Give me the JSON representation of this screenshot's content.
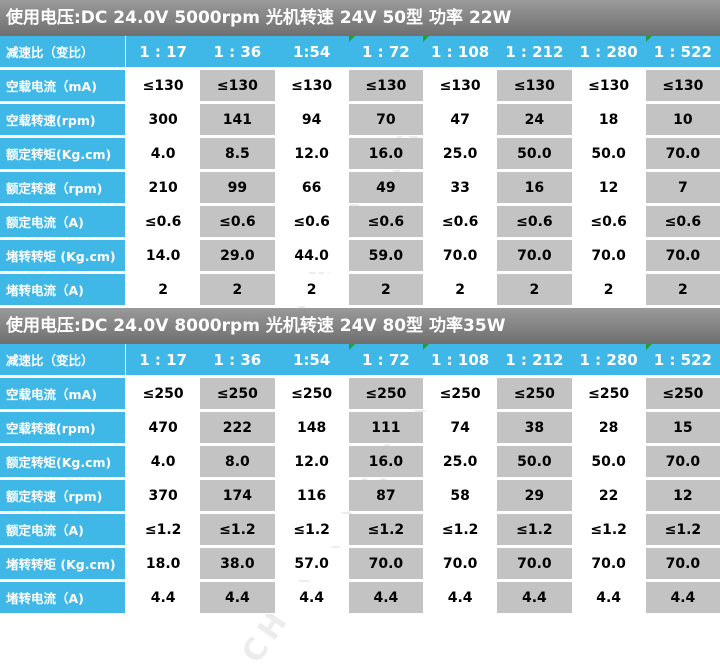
{
  "tables": [
    {
      "header": "使用电压:DC 24.0V 5000rpm 光机转速 24V 50型 功率 22W",
      "ratio_label": "减速比（变比）",
      "ratios": [
        "1 : 17",
        "1 : 36",
        "1:54",
        "1 : 72",
        "1 : 108",
        "1 : 212",
        "1 : 280",
        "1 : 522"
      ],
      "rows": [
        {
          "label": "空载电流（mA)",
          "values": [
            "≤130",
            "≤130",
            "≤130",
            "≤130",
            "≤130",
            "≤130",
            "≤130",
            "≤130"
          ]
        },
        {
          "label": "空载转速(rpm)",
          "values": [
            "300",
            "141",
            "94",
            "70",
            "47",
            "24",
            "18",
            "10"
          ]
        },
        {
          "label": "额定转矩(Kg.cm)",
          "values": [
            "4.0",
            "8.5",
            "12.0",
            "16.0",
            "25.0",
            "50.0",
            "50.0",
            "70.0"
          ]
        },
        {
          "label": "额定转速（rpm)",
          "values": [
            "210",
            "99",
            "66",
            "49",
            "33",
            "16",
            "12",
            "7"
          ]
        },
        {
          "label": "额定电流（A)",
          "values": [
            "≤0.6",
            "≤0.6",
            "≤0.6",
            "≤0.6",
            "≤0.6",
            "≤0.6",
            "≤0.6",
            "≤0.6"
          ]
        },
        {
          "label": "堵转转矩 (Kg.cm)",
          "values": [
            "14.0",
            "29.0",
            "44.0",
            "59.0",
            "70.0",
            "70.0",
            "70.0",
            "70.0"
          ]
        },
        {
          "label": "堵转电流（A)",
          "values": [
            "2",
            "2",
            "2",
            "2",
            "2",
            "2",
            "2",
            "2"
          ]
        }
      ]
    },
    {
      "header": "使用电压:DC 24.0V 8000rpm 光机转速 24V 80型 功率35W",
      "ratio_label": "减速比（变比）",
      "ratios": [
        "1 : 17",
        "1 : 36",
        "1:54",
        "1 : 72",
        "1 : 108",
        "1 : 212",
        "1 : 280",
        "1 : 522"
      ],
      "rows": [
        {
          "label": "空载电流（mA)",
          "values": [
            "≤250",
            "≤250",
            "≤250",
            "≤250",
            "≤250",
            "≤250",
            "≤250",
            "≤250"
          ]
        },
        {
          "label": "空载转速(rpm)",
          "values": [
            "470",
            "222",
            "148",
            "111",
            "74",
            "38",
            "28",
            "15"
          ]
        },
        {
          "label": "额定转矩(Kg.cm)",
          "values": [
            "4.0",
            "8.0",
            "12.0",
            "16.0",
            "25.0",
            "50.0",
            "50.0",
            "70.0"
          ]
        },
        {
          "label": "额定转速（rpm)",
          "values": [
            "370",
            "174",
            "116",
            "87",
            "58",
            "29",
            "22",
            "12"
          ]
        },
        {
          "label": "额定电流（A)",
          "values": [
            "≤1.2",
            "≤1.2",
            "≤1.2",
            "≤1.2",
            "≤1.2",
            "≤1.2",
            "≤1.2",
            "≤1.2"
          ]
        },
        {
          "label": "堵转转矩 (Kg.cm)",
          "values": [
            "18.0",
            "38.0",
            "57.0",
            "70.0",
            "70.0",
            "70.0",
            "70.0",
            "70.0"
          ]
        },
        {
          "label": "堵转电流（A)",
          "values": [
            "4.4",
            "4.4",
            "4.4",
            "4.4",
            "4.4",
            "4.4",
            "4.4",
            "4.4"
          ]
        }
      ]
    }
  ],
  "watermark": "CHIHAI MOTOR"
}
